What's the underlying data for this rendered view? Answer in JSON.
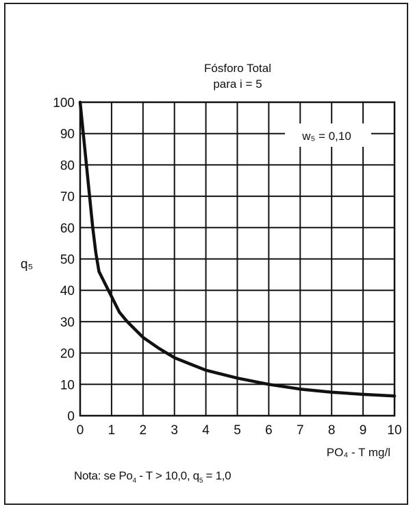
{
  "chart_data": {
    "type": "line",
    "title": "Fósforo Total",
    "subtitle": "para i = 5",
    "annotation": "w₅ = 0,10",
    "ylabel": "q₅",
    "xlabel": "PO₄ - T  mg/l",
    "xlim": [
      0,
      10
    ],
    "ylim": [
      0,
      100
    ],
    "x_ticks": [
      0,
      1,
      2,
      3,
      4,
      5,
      6,
      7,
      8,
      9,
      10
    ],
    "y_ticks": [
      0,
      10,
      20,
      30,
      40,
      50,
      60,
      70,
      80,
      90,
      100
    ],
    "grid": true,
    "series": [
      {
        "x": [
          0,
          0.1,
          0.2,
          0.3,
          0.4,
          0.5,
          0.6,
          0.8,
          1.0,
          1.25,
          1.5,
          2.0,
          2.5,
          3.0,
          3.5,
          4.0,
          5.0,
          6.0,
          7.0,
          8.0,
          9.0,
          10.0
        ],
        "y": [
          100,
          90,
          80,
          70,
          60,
          52,
          46,
          42,
          38,
          33,
          30,
          25,
          21.5,
          18.5,
          16.5,
          14.5,
          12,
          10,
          8.5,
          7.5,
          6.8,
          6.3
        ]
      }
    ]
  },
  "note": {
    "prefix": "Nota: se Po",
    "sub1": "4",
    "middle": " - T > 10,0,  q",
    "sub2": "5",
    "suffix": " = 1,0"
  }
}
